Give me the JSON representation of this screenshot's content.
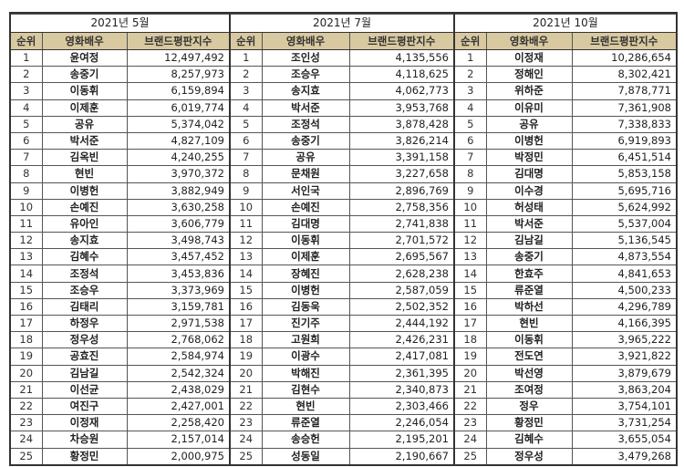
{
  "headers": {
    "rank": "순위",
    "actor": "영화배우",
    "score": "브랜드평판지수"
  },
  "tables": [
    {
      "title": "2021년 5월",
      "rows": [
        {
          "rank": "1",
          "name": "윤여정",
          "score": "12,497,492"
        },
        {
          "rank": "2",
          "name": "송중기",
          "score": "8,257,973"
        },
        {
          "rank": "3",
          "name": "이동휘",
          "score": "6,159,894"
        },
        {
          "rank": "4",
          "name": "이제훈",
          "score": "6,019,774"
        },
        {
          "rank": "5",
          "name": "공유",
          "score": "5,374,042"
        },
        {
          "rank": "6",
          "name": "박서준",
          "score": "4,827,109"
        },
        {
          "rank": "7",
          "name": "김옥빈",
          "score": "4,240,255"
        },
        {
          "rank": "8",
          "name": "현빈",
          "score": "3,970,372"
        },
        {
          "rank": "9",
          "name": "이병헌",
          "score": "3,882,949"
        },
        {
          "rank": "10",
          "name": "손예진",
          "score": "3,630,258"
        },
        {
          "rank": "11",
          "name": "유아인",
          "score": "3,606,779"
        },
        {
          "rank": "12",
          "name": "송지효",
          "score": "3,498,743"
        },
        {
          "rank": "13",
          "name": "김혜수",
          "score": "3,457,452"
        },
        {
          "rank": "14",
          "name": "조정석",
          "score": "3,453,836"
        },
        {
          "rank": "15",
          "name": "조승우",
          "score": "3,373,969"
        },
        {
          "rank": "16",
          "name": "김태리",
          "score": "3,159,781"
        },
        {
          "rank": "17",
          "name": "하정우",
          "score": "2,971,538"
        },
        {
          "rank": "18",
          "name": "정우성",
          "score": "2,768,062"
        },
        {
          "rank": "19",
          "name": "공효진",
          "score": "2,584,974"
        },
        {
          "rank": "20",
          "name": "김남길",
          "score": "2,542,324"
        },
        {
          "rank": "21",
          "name": "이선균",
          "score": "2,438,029"
        },
        {
          "rank": "22",
          "name": "여진구",
          "score": "2,427,001"
        },
        {
          "rank": "23",
          "name": "이정재",
          "score": "2,258,420"
        },
        {
          "rank": "24",
          "name": "차승원",
          "score": "2,157,014"
        },
        {
          "rank": "25",
          "name": "황정민",
          "score": "2,000,975"
        }
      ]
    },
    {
      "title": "2021년 7월",
      "rows": [
        {
          "rank": "1",
          "name": "조인성",
          "score": "4,135,556"
        },
        {
          "rank": "2",
          "name": "조승우",
          "score": "4,118,625"
        },
        {
          "rank": "3",
          "name": "송지효",
          "score": "4,062,773"
        },
        {
          "rank": "4",
          "name": "박서준",
          "score": "3,953,768"
        },
        {
          "rank": "5",
          "name": "조정석",
          "score": "3,878,428"
        },
        {
          "rank": "6",
          "name": "송중기",
          "score": "3,826,214"
        },
        {
          "rank": "7",
          "name": "공유",
          "score": "3,391,158"
        },
        {
          "rank": "8",
          "name": "문채원",
          "score": "3,227,658"
        },
        {
          "rank": "9",
          "name": "서인국",
          "score": "2,896,769"
        },
        {
          "rank": "10",
          "name": "손예진",
          "score": "2,758,356"
        },
        {
          "rank": "11",
          "name": "김대명",
          "score": "2,741,838"
        },
        {
          "rank": "12",
          "name": "이동휘",
          "score": "2,701,572"
        },
        {
          "rank": "13",
          "name": "이제훈",
          "score": "2,695,567"
        },
        {
          "rank": "14",
          "name": "장혜진",
          "score": "2,628,238"
        },
        {
          "rank": "15",
          "name": "이병헌",
          "score": "2,587,059"
        },
        {
          "rank": "16",
          "name": "김동욱",
          "score": "2,502,352"
        },
        {
          "rank": "17",
          "name": "진기주",
          "score": "2,444,192"
        },
        {
          "rank": "18",
          "name": "고원희",
          "score": "2,426,231"
        },
        {
          "rank": "19",
          "name": "이광수",
          "score": "2,417,081"
        },
        {
          "rank": "20",
          "name": "박해진",
          "score": "2,361,395"
        },
        {
          "rank": "21",
          "name": "김현수",
          "score": "2,340,873"
        },
        {
          "rank": "22",
          "name": "현빈",
          "score": "2,303,466"
        },
        {
          "rank": "23",
          "name": "류준열",
          "score": "2,246,054"
        },
        {
          "rank": "24",
          "name": "송승헌",
          "score": "2,195,201"
        },
        {
          "rank": "25",
          "name": "성동일",
          "score": "2,190,667"
        }
      ]
    },
    {
      "title": "2021년 10월",
      "rows": [
        {
          "rank": "1",
          "name": "이정재",
          "score": "10,286,654"
        },
        {
          "rank": "2",
          "name": "정해인",
          "score": "8,302,421"
        },
        {
          "rank": "3",
          "name": "위하준",
          "score": "7,878,771"
        },
        {
          "rank": "4",
          "name": "이유미",
          "score": "7,361,908"
        },
        {
          "rank": "5",
          "name": "공유",
          "score": "7,338,833"
        },
        {
          "rank": "6",
          "name": "이병헌",
          "score": "6,919,893"
        },
        {
          "rank": "7",
          "name": "박정민",
          "score": "6,451,514"
        },
        {
          "rank": "8",
          "name": "김대명",
          "score": "5,853,158"
        },
        {
          "rank": "9",
          "name": "이수경",
          "score": "5,695,716"
        },
        {
          "rank": "10",
          "name": "허성태",
          "score": "5,624,992"
        },
        {
          "rank": "11",
          "name": "박서준",
          "score": "5,537,004"
        },
        {
          "rank": "12",
          "name": "김남길",
          "score": "5,136,545"
        },
        {
          "rank": "13",
          "name": "송중기",
          "score": "4,873,554"
        },
        {
          "rank": "14",
          "name": "한효주",
          "score": "4,841,653"
        },
        {
          "rank": "15",
          "name": "류준열",
          "score": "4,500,233"
        },
        {
          "rank": "16",
          "name": "박하선",
          "score": "4,296,789"
        },
        {
          "rank": "17",
          "name": "현빈",
          "score": "4,166,395"
        },
        {
          "rank": "18",
          "name": "이동휘",
          "score": "3,965,222"
        },
        {
          "rank": "19",
          "name": "전도연",
          "score": "3,921,822"
        },
        {
          "rank": "20",
          "name": "박선영",
          "score": "3,879,679"
        },
        {
          "rank": "21",
          "name": "조여정",
          "score": "3,863,204"
        },
        {
          "rank": "22",
          "name": "정우",
          "score": "3,754,101"
        },
        {
          "rank": "23",
          "name": "황정민",
          "score": "3,731,254"
        },
        {
          "rank": "24",
          "name": "김혜수",
          "score": "3,655,054"
        },
        {
          "rank": "25",
          "name": "정우성",
          "score": "3,479,268"
        }
      ]
    }
  ],
  "colors": {
    "header_bg": "#d9c9a0",
    "border": "#333333"
  }
}
